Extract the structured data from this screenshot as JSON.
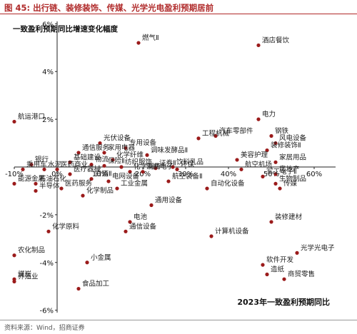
{
  "header": {
    "figure_label": "图 45:",
    "title": "出行链、装修装饰、传媒、光学光电盈利预期居前"
  },
  "footer": {
    "source": "资料来源：Wind，招商证券"
  },
  "colors": {
    "marker": "#9b1b1b",
    "axis": "#222222",
    "title": "#b02a2a"
  },
  "chart_data": {
    "type": "scatter",
    "title": "",
    "ylabel": "一致盈利预期同比增速变化幅度",
    "xlabel": "2023年一致盈利预期同比",
    "xlim": [
      -10,
      65
    ],
    "ylim": [
      -6.1,
      6.1
    ],
    "x_ticks": [
      -10,
      0,
      10,
      20,
      30,
      40,
      50,
      60
    ],
    "x_tick_labels": [
      "-10%",
      "0%",
      "10%",
      "20%",
      "30%",
      "40%",
      "50%",
      "60%"
    ],
    "y_ticks": [
      -6,
      -4,
      -2,
      0,
      2,
      4,
      6
    ],
    "y_tick_labels": [
      "-6%",
      "-4%",
      "-2%",
      "0%",
      "2%",
      "4%",
      "6%"
    ],
    "grid": false,
    "legend": "none",
    "points": [
      {
        "label": "燃气Ⅱ",
        "x": 19,
        "y": 5.2
      },
      {
        "label": "酒店餐饮",
        "x": 47,
        "y": 5.1
      },
      {
        "label": "电力",
        "x": 47,
        "y": 2.0
      },
      {
        "label": "航运港口",
        "x": -10,
        "y": 1.9
      },
      {
        "label": "汽车零部件",
        "x": 37,
        "y": 1.3
      },
      {
        "label": "钢铁",
        "x": 50,
        "y": 1.3
      },
      {
        "label": "风电设备",
        "x": 51,
        "y": 1.0
      },
      {
        "label": "工程机械",
        "x": 33,
        "y": 1.2
      },
      {
        "label": "光伏设备",
        "x": 10,
        "y": 1.0
      },
      {
        "label": "专用设备",
        "x": 16,
        "y": 0.8
      },
      {
        "label": "装修装饰Ⅱ",
        "x": 49,
        "y": 0.7
      },
      {
        "label": "通信服务",
        "x": 5,
        "y": 0.6
      },
      {
        "label": "家用电器",
        "x": 11,
        "y": 0.6
      },
      {
        "label": "调味发酵品Ⅱ",
        "x": 21,
        "y": 0.5
      },
      {
        "label": "化学纤维",
        "x": 13,
        "y": 0.3
      },
      {
        "label": "美容护理",
        "x": 42,
        "y": 0.3
      },
      {
        "label": "家居用品",
        "x": 51,
        "y": 0.2
      },
      {
        "label": "基础建设",
        "x": 3,
        "y": 0.2
      },
      {
        "label": "银行",
        "x": -6,
        "y": 0.1
      },
      {
        "label": "物流",
        "x": 8,
        "y": 0.1
      },
      {
        "label": "保险Ⅱ",
        "x": 11,
        "y": 0.05
      },
      {
        "label": "纺织服饰",
        "x": 15,
        "y": 0.0
      },
      {
        "label": "饮料乳品",
        "x": 27,
        "y": 0.0
      },
      {
        "label": "证券Ⅱ",
        "x": 23,
        "y": -0.05
      },
      {
        "label": "环保",
        "x": 28,
        "y": -0.1
      },
      {
        "label": "乘用车",
        "x": -8,
        "y": -0.1
      },
      {
        "label": "水泥",
        "x": -3,
        "y": -0.1
      },
      {
        "label": "医药商业",
        "x": 0,
        "y": -0.1
      },
      {
        "label": "航空机场",
        "x": 43,
        "y": -0.1
      },
      {
        "label": "化学制药",
        "x": 17,
        "y": -0.2
      },
      {
        "label": "消费电子",
        "x": 20,
        "y": -0.2
      },
      {
        "label": "医疗器械",
        "x": 3,
        "y": -0.3
      },
      {
        "label": "房地产",
        "x": 51,
        "y": -0.3
      },
      {
        "label": "军工电子Ⅱ",
        "x": 48,
        "y": -0.4
      },
      {
        "label": "白酒Ⅱ",
        "x": 8,
        "y": -0.5
      },
      {
        "label": "电网设备",
        "x": 12,
        "y": -0.6
      },
      {
        "label": "航空装备Ⅱ",
        "x": 26,
        "y": -0.6
      },
      {
        "label": "生物制品",
        "x": 51,
        "y": -0.7
      },
      {
        "label": "石油石化",
        "x": -5,
        "y": -0.7
      },
      {
        "label": "能源金属",
        "x": -10,
        "y": -0.7
      },
      {
        "label": "工业金属",
        "x": 14,
        "y": -0.9
      },
      {
        "label": "医药服务",
        "x": 1,
        "y": -0.9
      },
      {
        "label": "自动化设备",
        "x": 35,
        "y": -0.9
      },
      {
        "label": "半导体",
        "x": -5,
        "y": -1.0
      },
      {
        "label": "传媒",
        "x": 52,
        "y": -0.9
      },
      {
        "label": "化学制品",
        "x": 6,
        "y": -1.2
      },
      {
        "label": "通用设备",
        "x": 22,
        "y": -1.6
      },
      {
        "label": "电池",
        "x": 17,
        "y": -2.3
      },
      {
        "label": "装修建材",
        "x": 50,
        "y": -2.3
      },
      {
        "label": "化学原料",
        "x": -2,
        "y": -2.7
      },
      {
        "label": "通信设备",
        "x": 16,
        "y": -2.7
      },
      {
        "label": "计算机设备",
        "x": 36,
        "y": -2.9
      },
      {
        "label": "农化制品",
        "x": -10,
        "y": -3.7
      },
      {
        "label": "光学光电子",
        "x": 56,
        "y": -3.6
      },
      {
        "label": "小金属",
        "x": 7,
        "y": -4.0
      },
      {
        "label": "软件开发",
        "x": 48,
        "y": -4.1
      },
      {
        "label": "造纸",
        "x": 49,
        "y": -4.5
      },
      {
        "label": "商贸零售",
        "x": 53,
        "y": -4.7
      },
      {
        "label": "煤炭",
        "x": -10,
        "y": -4.7
      },
      {
        "label": "养殖业",
        "x": -10,
        "y": -4.8
      },
      {
        "label": "食品加工",
        "x": 5,
        "y": -5.1
      }
    ]
  }
}
